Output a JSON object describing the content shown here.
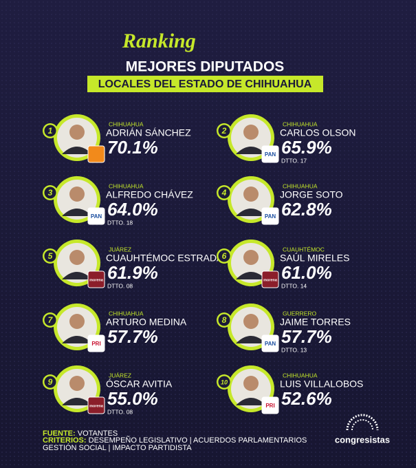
{
  "header": {
    "script": "Ranking",
    "title": "MEJORES DIPUTADOS",
    "subtitle": "LOCALES DEL ESTADO DE CHIHUAHUA"
  },
  "entries": [
    {
      "rank": "1",
      "city": "CHIHUAHUA",
      "name": "ADRIÁN SÁNCHEZ",
      "score": "70.1%"
    },
    {
      "rank": "2",
      "city": "CHIHUAHUA",
      "name": "CARLOS OLSON",
      "score": "65.9%",
      "district": "DTTO. 17",
      "party": "PAN"
    },
    {
      "rank": "3",
      "city": "CHIHUAHUA",
      "name": "ALFREDO CHÁVEZ",
      "score": "64.0%",
      "district": "DTTO. 18",
      "party": "PAN"
    },
    {
      "rank": "4",
      "city": "CHIHUAHUA",
      "name": "JORGE SOTO",
      "score": "62.8%",
      "party": "PAN"
    },
    {
      "rank": "5",
      "city": "JUÁREZ",
      "name": "CUAUHTÉMOC ESTRADA",
      "score": "61.9%",
      "district": "DTTO. 08",
      "party": "morena"
    },
    {
      "rank": "6",
      "city": "CUAUHTÉMOC",
      "name": "SAÚL MIRELES",
      "score": "61.0%",
      "district": "DTTO. 14",
      "party": "morena"
    },
    {
      "rank": "7",
      "city": "CHIHUAHUA",
      "name": "ARTURO MEDINA",
      "score": "57.7%",
      "party": "PRI"
    },
    {
      "rank": "8",
      "city": "GUERRERO",
      "name": "JAIME TORRES",
      "score": "57.7%",
      "district": "DTTO. 13",
      "party": "PAN"
    },
    {
      "rank": "9",
      "city": "JUÁREZ",
      "name": "ÓSCAR  AVITIA",
      "score": "55.0%",
      "district": "DTTO. 08",
      "party": "morena"
    },
    {
      "rank": "10",
      "city": "CHIHUAHUA",
      "name": "LUIS VILLALOBOS",
      "score": "52.6%",
      "party": "PRI"
    }
  ],
  "footer": {
    "source_label": "FUENTE:",
    "source": "VOTANTES",
    "criteria_label": "CRITERIOS:",
    "criteria_line1": "DESEMPEÑO LEGISLATIVO | ACUERDOS PARLAMENTARIOS",
    "criteria_line2": "GESTIÓN SOCIAL | IMPACTO PARTIDISTA"
  },
  "brand": "congresistas"
}
